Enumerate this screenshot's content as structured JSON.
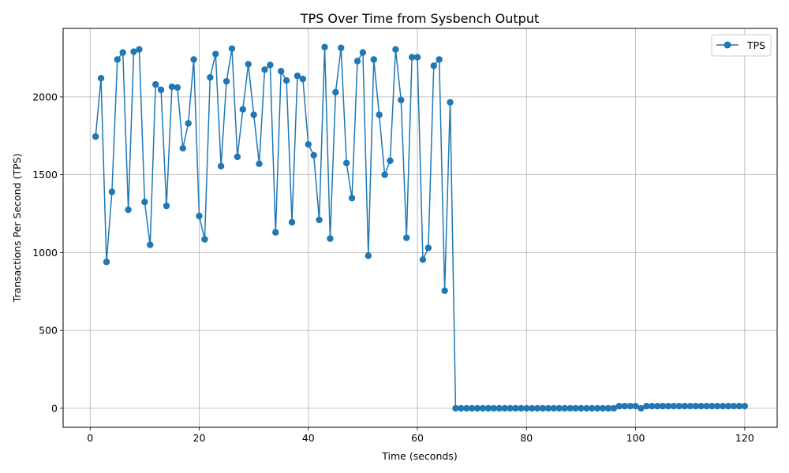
{
  "chart_data": {
    "type": "line",
    "title": "TPS Over Time from Sysbench Output",
    "xlabel": "Time (seconds)",
    "ylabel": "Transactions Per Second (TPS)",
    "xlim": [
      -4.95,
      125.95
    ],
    "ylim": [
      -122,
      2440
    ],
    "x_ticks": [
      0,
      20,
      40,
      60,
      80,
      100,
      120
    ],
    "y_ticks": [
      0,
      500,
      1000,
      1500,
      2000
    ],
    "grid": true,
    "legend_position": "top-right",
    "series": [
      {
        "name": "TPS",
        "color": "#1f77b4",
        "marker": "circle",
        "x": [
          1,
          2,
          3,
          4,
          5,
          6,
          7,
          8,
          9,
          10,
          11,
          12,
          13,
          14,
          15,
          16,
          17,
          18,
          19,
          20,
          21,
          22,
          23,
          24,
          25,
          26,
          27,
          28,
          29,
          30,
          31,
          32,
          33,
          34,
          35,
          36,
          37,
          38,
          39,
          40,
          41,
          42,
          43,
          44,
          45,
          46,
          47,
          48,
          49,
          50,
          51,
          52,
          53,
          54,
          55,
          56,
          57,
          58,
          59,
          60,
          61,
          62,
          63,
          64,
          65,
          66,
          67,
          68,
          69,
          70,
          71,
          72,
          73,
          74,
          75,
          76,
          77,
          78,
          79,
          80,
          81,
          82,
          83,
          84,
          85,
          86,
          87,
          88,
          89,
          90,
          91,
          92,
          93,
          94,
          95,
          96,
          97,
          98,
          99,
          100,
          101,
          102,
          103,
          104,
          105,
          106,
          107,
          108,
          109,
          110,
          111,
          112,
          113,
          114,
          115,
          116,
          117,
          118,
          119,
          120
        ],
        "y": [
          1745,
          2120,
          940,
          1390,
          2240,
          2285,
          1275,
          2290,
          2305,
          1325,
          1050,
          2080,
          2045,
          1300,
          2065,
          2060,
          1670,
          1830,
          2240,
          1235,
          1085,
          2125,
          2275,
          1555,
          2100,
          2310,
          1615,
          1920,
          2210,
          1885,
          1570,
          2175,
          2205,
          1130,
          2165,
          2105,
          1195,
          2135,
          2115,
          1695,
          1625,
          1210,
          2320,
          1090,
          2030,
          2315,
          1575,
          1350,
          2230,
          2285,
          980,
          2240,
          1885,
          1500,
          1590,
          2305,
          1980,
          1095,
          2255,
          2255,
          955,
          1030,
          2200,
          2240,
          755,
          1965,
          0,
          0,
          0,
          0,
          0,
          0,
          0,
          0,
          0,
          0,
          0,
          0,
          0,
          0,
          0,
          0,
          0,
          0,
          0,
          0,
          0,
          0,
          0,
          0,
          0,
          0,
          0,
          0,
          0,
          0,
          14,
          14,
          14,
          14,
          0,
          14,
          14,
          14,
          14,
          14,
          14,
          14,
          14,
          14,
          14,
          14,
          14,
          14,
          14,
          14,
          14,
          14,
          14,
          14
        ]
      }
    ]
  }
}
